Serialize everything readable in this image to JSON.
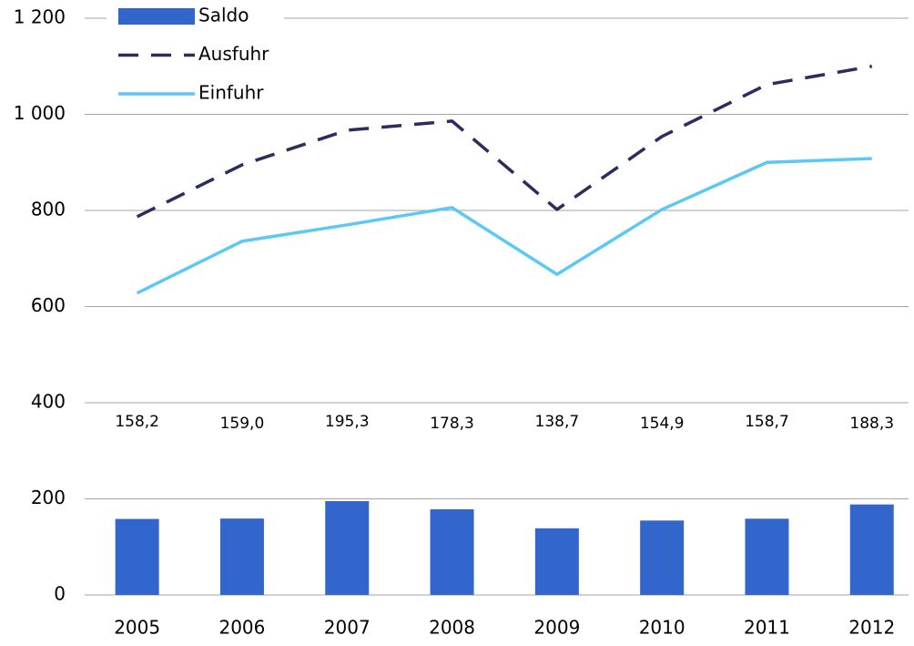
{
  "chart_data": {
    "type": "bar-line",
    "categories": [
      "2005",
      "2006",
      "2007",
      "2008",
      "2009",
      "2010",
      "2011",
      "2012"
    ],
    "series": [
      {
        "name": "Saldo",
        "type": "bar",
        "color": "#3366cc",
        "values": [
          158.2,
          159.0,
          195.3,
          178.3,
          138.7,
          154.9,
          158.7,
          188.3
        ],
        "value_labels": [
          "158,2",
          "159,0",
          "195,3",
          "178,3",
          "138,7",
          "154,9",
          "158,7",
          "188,3"
        ]
      },
      {
        "name": "Ausfuhr",
        "type": "line",
        "dashed": true,
        "color": "#2b2d5e",
        "values": [
          787,
          895,
          967,
          986,
          802,
          954,
          1062,
          1100
        ]
      },
      {
        "name": "Einfuhr",
        "type": "line",
        "dashed": false,
        "color": "#5bc8f5",
        "values": [
          628,
          736,
          770,
          806,
          667,
          802,
          900,
          908
        ]
      }
    ],
    "ylim": [
      0,
      1200
    ],
    "yticks": [
      0,
      200,
      400,
      600,
      800,
      {
        "value": 1000,
        "label": "1 000"
      },
      {
        "value": 1200,
        "label": "1 200"
      }
    ],
    "grid": true,
    "legend": "upper left"
  }
}
